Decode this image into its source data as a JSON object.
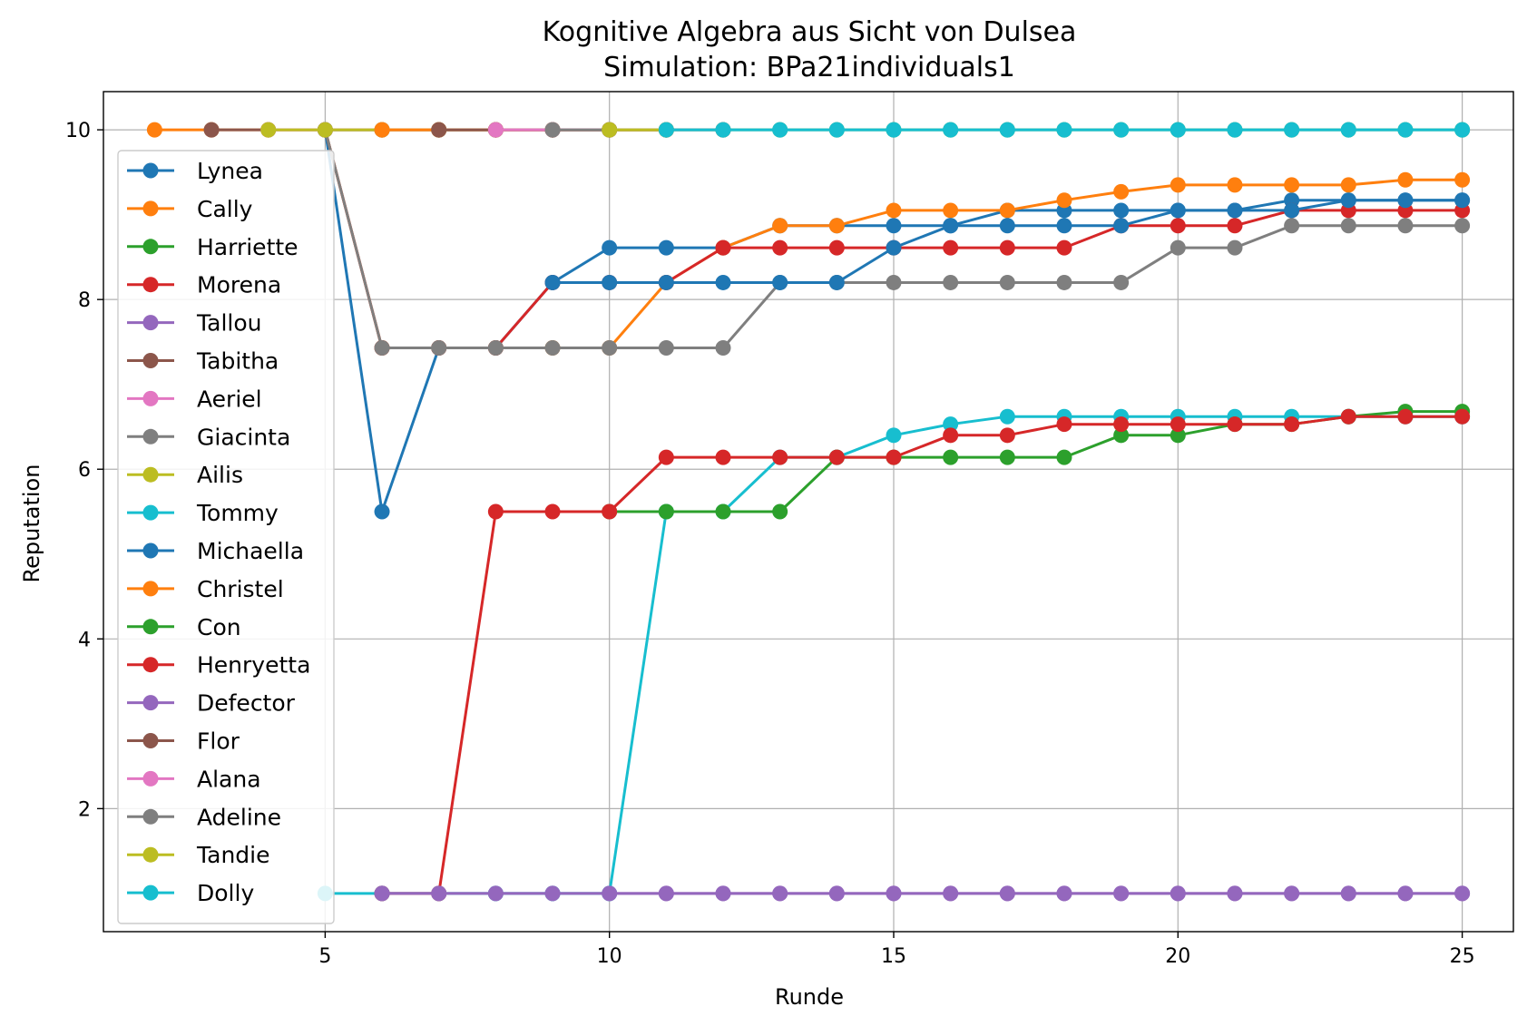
{
  "chart_data": {
    "type": "line",
    "title": "Kognitive Algebra aus Sicht von Dulsea",
    "subtitle": "Simulation: BPa21individuals1",
    "xlabel": "Runde",
    "ylabel": "Reputation",
    "xlim": [
      1.1,
      25.9
    ],
    "ylim": [
      0.55,
      10.45
    ],
    "xticks": [
      5,
      10,
      15,
      20,
      25
    ],
    "yticks": [
      2,
      4,
      6,
      8,
      10
    ],
    "grid": true,
    "legend_position": "left",
    "series": [
      {
        "name": "Lynea",
        "color": "#1f77b4",
        "points": [
          [
            5,
            10
          ],
          [
            6,
            5.5
          ],
          [
            7,
            7.43
          ],
          [
            8,
            7.43
          ],
          [
            9,
            8.2
          ],
          [
            10,
            8.61
          ],
          [
            11,
            8.61
          ],
          [
            12,
            8.61
          ],
          [
            13,
            8.87
          ],
          [
            14,
            8.87
          ],
          [
            15,
            8.87
          ],
          [
            16,
            8.87
          ],
          [
            17,
            9.05
          ],
          [
            18,
            9.05
          ],
          [
            19,
            9.05
          ],
          [
            20,
            9.05
          ],
          [
            21,
            9.05
          ],
          [
            22,
            9.17
          ],
          [
            23,
            9.17
          ],
          [
            24,
            9.17
          ],
          [
            25,
            9.17
          ]
        ]
      },
      {
        "name": "Cally",
        "color": "#ff7f0e",
        "points": [
          [
            2,
            10
          ],
          [
            3,
            10
          ],
          [
            4,
            10
          ],
          [
            5,
            10
          ],
          [
            6,
            7.43
          ],
          [
            7,
            7.43
          ],
          [
            8,
            7.43
          ],
          [
            9,
            7.43
          ],
          [
            10,
            7.43
          ],
          [
            11,
            8.2
          ],
          [
            12,
            8.61
          ],
          [
            13,
            8.87
          ],
          [
            14,
            8.87
          ],
          [
            15,
            9.05
          ],
          [
            16,
            9.05
          ],
          [
            17,
            9.05
          ],
          [
            18,
            9.17
          ],
          [
            19,
            9.27
          ],
          [
            20,
            9.35
          ],
          [
            21,
            9.35
          ],
          [
            22,
            9.35
          ],
          [
            23,
            9.35
          ],
          [
            24,
            9.41
          ],
          [
            25,
            9.41
          ]
        ]
      },
      {
        "name": "Harriette",
        "color": "#2ca02c",
        "points": [
          [
            5,
            10
          ],
          [
            6,
            10
          ],
          [
            7,
            10
          ],
          [
            8,
            10
          ],
          [
            9,
            10
          ],
          [
            10,
            10
          ],
          [
            11,
            10
          ],
          [
            12,
            10
          ],
          [
            13,
            10
          ],
          [
            14,
            10
          ],
          [
            15,
            10
          ],
          [
            16,
            10
          ],
          [
            17,
            10
          ],
          [
            18,
            10
          ],
          [
            19,
            10
          ],
          [
            20,
            10
          ],
          [
            21,
            10
          ],
          [
            22,
            10
          ],
          [
            23,
            10
          ],
          [
            24,
            10
          ],
          [
            25,
            10
          ]
        ]
      },
      {
        "name": "Morena",
        "color": "#d62728",
        "points": [
          [
            5,
            10
          ],
          [
            6,
            7.43
          ],
          [
            7,
            7.43
          ],
          [
            8,
            7.43
          ],
          [
            9,
            8.2
          ],
          [
            10,
            8.2
          ],
          [
            11,
            8.2
          ],
          [
            12,
            8.61
          ],
          [
            13,
            8.61
          ],
          [
            14,
            8.61
          ],
          [
            15,
            8.61
          ],
          [
            16,
            8.61
          ],
          [
            17,
            8.61
          ],
          [
            18,
            8.61
          ],
          [
            19,
            8.87
          ],
          [
            20,
            8.87
          ],
          [
            21,
            8.87
          ],
          [
            22,
            9.05
          ],
          [
            23,
            9.05
          ],
          [
            24,
            9.05
          ],
          [
            25,
            9.05
          ]
        ]
      },
      {
        "name": "Tallou",
        "color": "#9467bd",
        "points": [
          [
            6,
            1
          ],
          [
            7,
            1
          ],
          [
            8,
            1
          ],
          [
            9,
            1
          ],
          [
            10,
            1
          ],
          [
            11,
            1
          ],
          [
            12,
            1
          ],
          [
            13,
            1
          ],
          [
            14,
            1
          ],
          [
            15,
            1
          ],
          [
            16,
            1
          ],
          [
            17,
            1
          ],
          [
            18,
            1
          ],
          [
            19,
            1
          ],
          [
            20,
            1
          ],
          [
            21,
            1
          ],
          [
            22,
            1
          ],
          [
            23,
            1
          ],
          [
            24,
            1
          ],
          [
            25,
            1
          ]
        ]
      },
      {
        "name": "Tabitha",
        "color": "#8c564b",
        "points": [
          [
            3,
            10
          ],
          [
            4,
            10
          ],
          [
            5,
            10
          ],
          [
            6,
            10
          ],
          [
            7,
            10
          ],
          [
            8,
            10
          ],
          [
            9,
            10
          ],
          [
            10,
            10
          ],
          [
            11,
            10
          ],
          [
            12,
            10
          ]
        ]
      },
      {
        "name": "Aeriel",
        "color": "#e377c2",
        "points": [
          [
            4,
            10
          ],
          [
            5,
            10
          ],
          [
            6,
            10
          ],
          [
            7,
            10
          ],
          [
            8,
            10
          ],
          [
            9,
            10
          ],
          [
            10,
            10
          ]
        ]
      },
      {
        "name": "Giacinta",
        "color": "#7f7f7f",
        "points": [
          [
            5,
            10
          ],
          [
            6,
            7.43
          ],
          [
            7,
            7.43
          ],
          [
            8,
            7.43
          ],
          [
            9,
            7.43
          ],
          [
            10,
            7.43
          ],
          [
            11,
            7.43
          ],
          [
            12,
            7.43
          ],
          [
            13,
            8.2
          ],
          [
            14,
            8.2
          ],
          [
            15,
            8.2
          ],
          [
            16,
            8.2
          ],
          [
            17,
            8.2
          ],
          [
            18,
            8.2
          ],
          [
            19,
            8.2
          ],
          [
            20,
            8.61
          ],
          [
            21,
            8.61
          ],
          [
            22,
            8.87
          ],
          [
            23,
            8.87
          ],
          [
            24,
            8.87
          ],
          [
            25,
            8.87
          ]
        ]
      },
      {
        "name": "Ailis",
        "color": "#bcbd22",
        "points": [
          [
            4,
            10
          ],
          [
            5,
            10
          ],
          [
            6,
            10
          ],
          [
            7,
            10
          ],
          [
            8,
            10
          ],
          [
            9,
            10
          ],
          [
            10,
            10
          ],
          [
            11,
            10
          ]
        ]
      },
      {
        "name": "Tommy",
        "color": "#17becf",
        "points": [
          [
            5,
            1
          ],
          [
            6,
            1
          ],
          [
            7,
            1
          ],
          [
            8,
            1
          ],
          [
            9,
            1
          ],
          [
            10,
            1
          ],
          [
            11,
            5.5
          ],
          [
            12,
            5.5
          ],
          [
            13,
            6.14
          ],
          [
            14,
            6.14
          ],
          [
            15,
            6.4
          ],
          [
            16,
            6.53
          ],
          [
            17,
            6.62
          ],
          [
            18,
            6.62
          ],
          [
            19,
            6.62
          ],
          [
            20,
            6.62
          ],
          [
            21,
            6.62
          ],
          [
            22,
            6.62
          ],
          [
            23,
            6.62
          ],
          [
            24,
            6.62
          ],
          [
            25,
            6.62
          ]
        ]
      },
      {
        "name": "Michaella",
        "color": "#1f77b4",
        "points": [
          [
            9,
            8.2
          ],
          [
            10,
            8.2
          ],
          [
            11,
            8.2
          ],
          [
            12,
            8.2
          ],
          [
            13,
            8.2
          ],
          [
            14,
            8.2
          ],
          [
            15,
            8.61
          ],
          [
            16,
            8.87
          ],
          [
            17,
            8.87
          ],
          [
            18,
            8.87
          ],
          [
            19,
            8.87
          ],
          [
            20,
            9.05
          ],
          [
            21,
            9.05
          ],
          [
            22,
            9.05
          ],
          [
            23,
            9.17
          ],
          [
            24,
            9.17
          ],
          [
            25,
            9.17
          ]
        ]
      },
      {
        "name": "Christel",
        "color": "#ff7f0e",
        "points": [
          [
            6,
            10
          ],
          [
            7,
            10
          ],
          [
            8,
            10
          ],
          [
            9,
            10
          ],
          [
            10,
            10
          ],
          [
            11,
            10
          ]
        ]
      },
      {
        "name": "Con",
        "color": "#2ca02c",
        "points": [
          [
            10,
            5.5
          ],
          [
            11,
            5.5
          ],
          [
            12,
            5.5
          ],
          [
            13,
            5.5
          ],
          [
            14,
            6.14
          ],
          [
            15,
            6.14
          ],
          [
            16,
            6.14
          ],
          [
            17,
            6.14
          ],
          [
            18,
            6.14
          ],
          [
            19,
            6.4
          ],
          [
            20,
            6.4
          ],
          [
            21,
            6.53
          ],
          [
            22,
            6.53
          ],
          [
            23,
            6.62
          ],
          [
            24,
            6.68
          ],
          [
            25,
            6.68
          ]
        ]
      },
      {
        "name": "Henryetta",
        "color": "#d62728",
        "points": [
          [
            6,
            1
          ],
          [
            7,
            1
          ],
          [
            8,
            5.5
          ],
          [
            9,
            5.5
          ],
          [
            10,
            5.5
          ],
          [
            11,
            6.14
          ],
          [
            12,
            6.14
          ],
          [
            13,
            6.14
          ],
          [
            14,
            6.14
          ],
          [
            15,
            6.14
          ],
          [
            16,
            6.4
          ],
          [
            17,
            6.4
          ],
          [
            18,
            6.53
          ],
          [
            19,
            6.53
          ],
          [
            20,
            6.53
          ],
          [
            21,
            6.53
          ],
          [
            22,
            6.53
          ],
          [
            23,
            6.62
          ],
          [
            24,
            6.62
          ],
          [
            25,
            6.62
          ]
        ]
      },
      {
        "name": "Defector",
        "color": "#9467bd",
        "points": [
          [
            6,
            1
          ],
          [
            7,
            1
          ],
          [
            8,
            1
          ],
          [
            9,
            1
          ],
          [
            10,
            1
          ],
          [
            11,
            1
          ],
          [
            12,
            1
          ],
          [
            13,
            1
          ],
          [
            14,
            1
          ],
          [
            15,
            1
          ],
          [
            16,
            1
          ],
          [
            17,
            1
          ],
          [
            18,
            1
          ],
          [
            19,
            1
          ],
          [
            20,
            1
          ],
          [
            21,
            1
          ],
          [
            22,
            1
          ],
          [
            23,
            1
          ],
          [
            24,
            1
          ],
          [
            25,
            1
          ]
        ]
      },
      {
        "name": "Flor",
        "color": "#8c564b",
        "points": [
          [
            7,
            10
          ],
          [
            8,
            10
          ],
          [
            9,
            10
          ],
          [
            10,
            10
          ]
        ]
      },
      {
        "name": "Alana",
        "color": "#e377c2",
        "points": [
          [
            8,
            10
          ],
          [
            9,
            10
          ],
          [
            10,
            10
          ],
          [
            11,
            10
          ]
        ]
      },
      {
        "name": "Adeline",
        "color": "#7f7f7f",
        "points": [
          [
            9,
            10
          ],
          [
            10,
            10
          ],
          [
            11,
            10
          ]
        ]
      },
      {
        "name": "Tandie",
        "color": "#bcbd22",
        "points": [
          [
            10,
            10
          ],
          [
            11,
            10
          ]
        ]
      },
      {
        "name": "Dolly",
        "color": "#17becf",
        "points": [
          [
            11,
            10
          ],
          [
            12,
            10
          ],
          [
            13,
            10
          ],
          [
            14,
            10
          ],
          [
            15,
            10
          ],
          [
            16,
            10
          ],
          [
            17,
            10
          ],
          [
            18,
            10
          ],
          [
            19,
            10
          ],
          [
            20,
            10
          ],
          [
            21,
            10
          ],
          [
            22,
            10
          ],
          [
            23,
            10
          ],
          [
            24,
            10
          ],
          [
            25,
            10
          ]
        ]
      }
    ]
  }
}
